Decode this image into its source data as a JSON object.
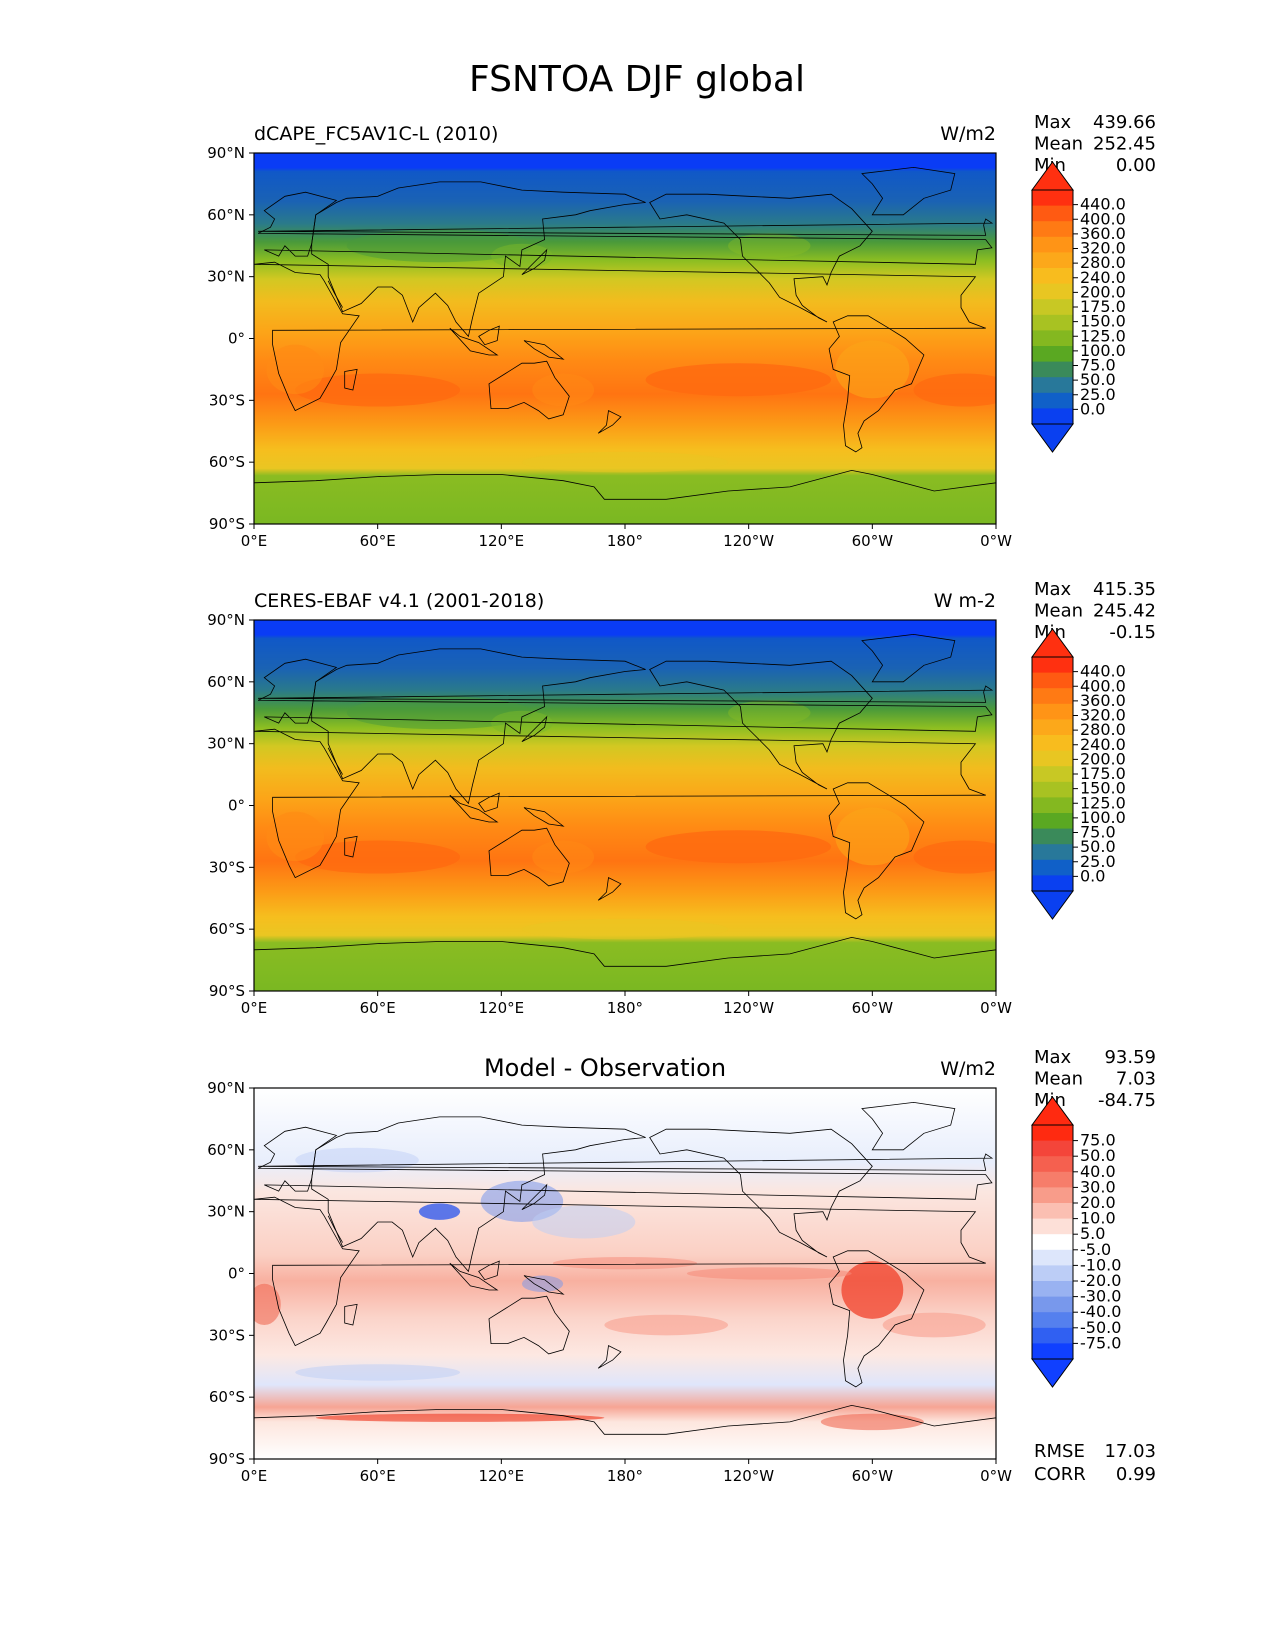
{
  "figure_title": "FSNTOA DJF global",
  "chart_data": [
    {
      "type": "heatmap",
      "title": "dCAPE_FC5AV1C-L (2010)",
      "units": "W/m2",
      "stats": {
        "max": "439.66",
        "mean": "252.45",
        "min": "0.00"
      },
      "stat_labels": {
        "max": "Max",
        "mean": "Mean",
        "min": "Min"
      },
      "x_ticks": [
        "0°E",
        "60°E",
        "120°E",
        "180°",
        "120°W",
        "60°W",
        "0°W"
      ],
      "y_ticks": [
        "90°N",
        "60°N",
        "30°N",
        "0°",
        "30°S",
        "60°S",
        "90°S"
      ],
      "xlim": [
        0,
        360
      ],
      "ylim": [
        -90,
        90
      ],
      "colorbar_levels": [
        "440.0",
        "400.0",
        "360.0",
        "320.0",
        "280.0",
        "240.0",
        "200.0",
        "175.0",
        "150.0",
        "125.0",
        "100.0",
        "75.0",
        "50.0",
        "25.0",
        "0.0"
      ],
      "colorbar_colors": [
        "#ff3010",
        "#ff5a12",
        "#ff7a14",
        "#ff9416",
        "#fca81a",
        "#f8bc1e",
        "#e8c622",
        "#c8c824",
        "#a8c222",
        "#84b820",
        "#5aa822",
        "#3a8a5a",
        "#28789a",
        "#1060c8",
        "#0a40f0"
      ],
      "colorbar_extend": "both"
    },
    {
      "type": "heatmap",
      "title": "CERES-EBAF v4.1 (2001-2018)",
      "units": "W m-2",
      "stats": {
        "max": "415.35",
        "mean": "245.42",
        "min": "-0.15"
      },
      "stat_labels": {
        "max": "Max",
        "mean": "Mean",
        "min": "Min"
      },
      "x_ticks": [
        "0°E",
        "60°E",
        "120°E",
        "180°",
        "120°W",
        "60°W",
        "0°W"
      ],
      "y_ticks": [
        "90°N",
        "60°N",
        "30°N",
        "0°",
        "30°S",
        "60°S",
        "90°S"
      ],
      "xlim": [
        0,
        360
      ],
      "ylim": [
        -90,
        90
      ],
      "colorbar_levels": [
        "440.0",
        "400.0",
        "360.0",
        "320.0",
        "280.0",
        "240.0",
        "200.0",
        "175.0",
        "150.0",
        "125.0",
        "100.0",
        "75.0",
        "50.0",
        "25.0",
        "0.0"
      ],
      "colorbar_colors": [
        "#ff3010",
        "#ff5a12",
        "#ff7a14",
        "#ff9416",
        "#fca81a",
        "#f8bc1e",
        "#e8c622",
        "#c8c824",
        "#a8c222",
        "#84b820",
        "#5aa822",
        "#3a8a5a",
        "#28789a",
        "#1060c8",
        "#0a40f0"
      ],
      "colorbar_extend": "both"
    },
    {
      "type": "heatmap",
      "title": "Model - Observation",
      "units": "W/m2",
      "stats": {
        "max": "93.59",
        "mean": "7.03",
        "min": "-84.75"
      },
      "stat_labels": {
        "max": "Max",
        "mean": "Mean",
        "min": "Min"
      },
      "extra_stats": {
        "rmse": "17.03",
        "corr": "0.99"
      },
      "extra_stat_labels": {
        "rmse": "RMSE",
        "corr": "CORR"
      },
      "x_ticks": [
        "0°E",
        "60°E",
        "120°E",
        "180°",
        "120°W",
        "60°W",
        "0°W"
      ],
      "y_ticks": [
        "90°N",
        "60°N",
        "30°N",
        "0°",
        "30°S",
        "60°S",
        "90°S"
      ],
      "xlim": [
        0,
        360
      ],
      "ylim": [
        -90,
        90
      ],
      "colorbar_levels": [
        "75.0",
        "50.0",
        "40.0",
        "30.0",
        "20.0",
        "10.0",
        "5.0",
        "-5.0",
        "-10.0",
        "-20.0",
        "-30.0",
        "-40.0",
        "-50.0",
        "-75.0"
      ],
      "colorbar_colors": [
        "#ff2a10",
        "#f4453a",
        "#f5604f",
        "#f67d6a",
        "#f89c8a",
        "#fbbfb2",
        "#fde0d8",
        "#ffffff",
        "#dde6fb",
        "#bccdf6",
        "#99b2f1",
        "#7898ec",
        "#5580ee",
        "#3060f2",
        "#1040ff"
      ],
      "colorbar_extend": "both"
    }
  ]
}
